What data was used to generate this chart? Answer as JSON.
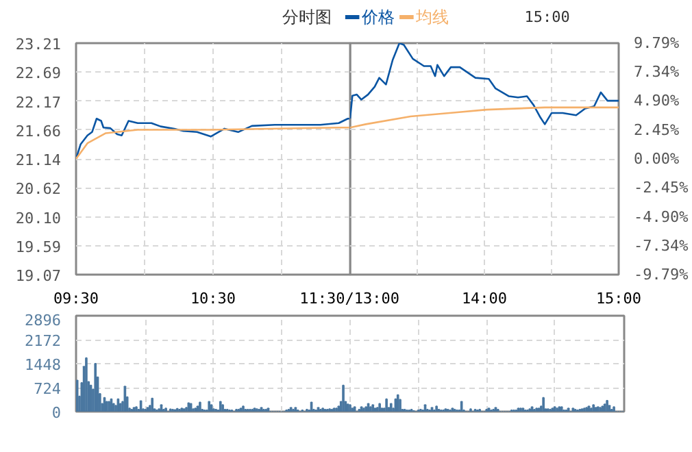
{
  "chart_data": [
    {
      "type": "line",
      "title": "分时图",
      "annotations": [
        "15:00"
      ],
      "legend": "top",
      "grid": true,
      "marker": "none",
      "line_style": "solid",
      "xlim": [
        9.5,
        11.5
      ],
      "xticks": [
        {
          "value": 9.5,
          "label": "09:30"
        },
        {
          "value": 10,
          "label": null
        },
        {
          "value": 10.5,
          "label": "10:30"
        },
        {
          "value": 11,
          "label": null
        },
        {
          "value": 11.5,
          "label": "11:30/13:00"
        }
      ],
      "ylim": [
        19.07,
        23.21
      ],
      "yticks": [
        19.07,
        19.59,
        {
          "value": 20.1,
          "label": "20.10"
        },
        20.62,
        21.14,
        21.66,
        22.17,
        22.69,
        23.21
      ],
      "series": [
        {
          "name": "价格",
          "color": "#0a55a3",
          "x": [
            9.5,
            9.533,
            9.583,
            9.617,
            9.65,
            9.683,
            9.7,
            9.75,
            9.8,
            9.833,
            9.883,
            9.95,
            10.05,
            10.117,
            10.217,
            10.283,
            10.383,
            10.483,
            10.583,
            10.683,
            10.783,
            10.95,
            11.283,
            11.417,
            11.483,
            11.5
          ],
          "values": [
            21.14,
            21.4,
            21.56,
            21.62,
            21.86,
            21.82,
            21.7,
            21.69,
            21.58,
            21.56,
            21.82,
            21.78,
            21.78,
            21.72,
            21.68,
            21.64,
            21.62,
            21.54,
            21.68,
            21.62,
            21.73,
            21.75,
            21.75,
            21.78,
            21.86,
            21.86
          ]
        },
        {
          "name": "均线",
          "color": "#f5b06a",
          "x": [
            9.5,
            9.583,
            9.717,
            9.95,
            10.483,
            11.417,
            11.5
          ],
          "values": [
            21.14,
            21.42,
            21.6,
            21.66,
            21.66,
            21.7,
            21.7
          ]
        }
      ]
    },
    {
      "type": "line",
      "grid": true,
      "marker": "none",
      "line_style": "solid",
      "xlim": [
        13,
        15
      ],
      "xticks": [
        {
          "value": 13.5,
          "label": null
        },
        {
          "value": 14,
          "label": "14:00"
        },
        {
          "value": 14.5,
          "label": null
        },
        {
          "value": 15,
          "label": "15:00"
        }
      ],
      "ylim": [
        19.07,
        23.21
      ],
      "y2lim": [
        -9.79,
        9.79
      ],
      "y2ticks": [
        {
          "value": -9.79,
          "label": "-9.79%"
        },
        {
          "value": -7.34,
          "label": "-7.34%"
        },
        {
          "value": -4.9,
          "label": "-4.90%"
        },
        {
          "value": -2.45,
          "label": "-2.45%"
        },
        {
          "value": 0,
          "label": "0.00%"
        },
        {
          "value": 2.45,
          "label": "2.45%"
        },
        {
          "value": 4.9,
          "label": "4.90%"
        },
        {
          "value": 7.34,
          "label": "7.34%"
        },
        {
          "value": 9.79,
          "label": "9.79%"
        }
      ],
      "series": [
        {
          "color": "#0a55a3",
          "x": [
            13,
            13.017,
            13.05,
            13.083,
            13.133,
            13.183,
            13.217,
            13.267,
            13.317,
            13.367,
            13.4,
            13.467,
            13.55,
            13.6,
            13.633,
            13.65,
            13.7,
            13.75,
            13.817,
            13.933,
            14.033,
            14.083,
            14.183,
            14.25,
            14.317,
            14.367,
            14.417,
            14.45,
            14.5,
            14.583,
            14.683,
            14.75,
            14.817,
            14.867,
            14.917,
            15
          ],
          "values": [
            21.86,
            22.27,
            22.29,
            22.2,
            22.29,
            22.43,
            22.59,
            22.47,
            22.91,
            23.21,
            23.18,
            22.93,
            22.8,
            22.8,
            22.62,
            22.82,
            22.62,
            22.78,
            22.78,
            22.59,
            22.57,
            22.4,
            22.26,
            22.24,
            22.26,
            22.1,
            21.88,
            21.76,
            21.96,
            21.96,
            21.92,
            22.04,
            22.08,
            22.33,
            22.18,
            22.18
          ]
        },
        {
          "color": "#f5b06a",
          "x": [
            13,
            13.117,
            13.45,
            13.783,
            14.017,
            14.45,
            15
          ],
          "values": [
            21.7,
            21.76,
            21.9,
            21.97,
            22.02,
            22.06,
            22.06
          ]
        }
      ]
    },
    {
      "type": "bar",
      "grid": true,
      "tick_labels": "y",
      "ylim": [
        0,
        2896
      ],
      "yticks": [
        0,
        724,
        1448,
        2172,
        2896
      ],
      "categories": [
        null,
        null,
        null,
        null,
        null,
        null,
        null,
        null,
        null,
        null,
        null,
        null,
        null,
        null,
        null,
        null,
        null,
        null,
        null,
        null,
        null,
        null,
        null,
        null,
        null,
        null,
        null,
        null,
        null,
        null,
        null,
        null,
        null,
        null,
        null,
        null,
        null,
        null,
        null,
        null,
        null,
        null,
        null,
        null,
        null,
        null,
        null,
        null,
        null,
        null,
        null,
        null,
        null,
        null,
        null,
        null,
        null,
        null,
        null,
        null,
        null,
        null,
        null,
        null,
        null,
        null,
        null,
        null,
        null,
        null,
        null,
        null,
        null,
        null,
        null,
        null,
        null,
        null,
        null,
        null,
        null,
        null,
        null,
        null,
        null,
        null,
        null,
        null,
        null,
        null,
        null,
        null,
        null,
        null,
        null,
        null,
        null,
        null,
        null,
        null,
        null,
        null,
        null,
        null,
        null,
        null,
        null,
        null,
        null,
        null,
        null,
        null,
        null,
        null,
        null,
        null,
        null,
        null,
        null,
        null,
        null,
        null,
        null,
        null,
        null,
        null,
        null,
        null,
        null,
        null,
        null,
        null,
        null,
        null,
        null,
        null,
        null,
        null,
        null,
        null,
        null,
        null,
        null,
        null,
        null,
        null,
        null,
        null,
        null,
        null,
        null,
        null,
        null,
        null,
        null,
        null,
        null,
        null,
        null,
        null,
        null,
        null,
        null,
        null,
        null,
        null,
        null,
        null,
        null,
        null,
        null,
        null,
        null,
        null,
        null,
        null,
        null,
        null,
        null,
        null,
        null,
        null,
        null,
        null,
        null,
        null,
        null,
        null,
        null,
        null,
        null,
        null,
        null,
        null,
        null,
        null,
        null,
        null,
        null,
        null,
        null,
        null,
        null,
        null,
        null,
        null,
        null,
        null,
        null,
        null,
        null,
        null,
        null,
        null,
        null,
        null,
        null,
        null,
        null,
        null,
        null,
        null,
        null,
        null,
        null,
        null,
        null,
        null,
        null,
        null,
        null,
        null,
        null,
        null,
        null,
        null,
        null,
        null,
        null,
        null,
        null
      ],
      "series": [
        {
          "color": "#4a77a0",
          "values": [
            940,
            460,
            870,
            1360,
            1620,
            900,
            790,
            670,
            1450,
            1040,
            540,
            240,
            420,
            300,
            300,
            380,
            240,
            180,
            380,
            240,
            300,
            760,
            440,
            100,
            60,
            120,
            140,
            60,
            320,
            80,
            60,
            120,
            180,
            400,
            80,
            40,
            80,
            200,
            60,
            100,
            0,
            70,
            60,
            50,
            90,
            60,
            100,
            80,
            120,
            260,
            240,
            80,
            100,
            160,
            280,
            60,
            40,
            40,
            300,
            200,
            80,
            60,
            40,
            300,
            200,
            60,
            60,
            40,
            40,
            0,
            60,
            60,
            100,
            160,
            60,
            60,
            60,
            60,
            100,
            80,
            60,
            120,
            60,
            60,
            100,
            0,
            0,
            0,
            0,
            0,
            0,
            0,
            40,
            60,
            120,
            60,
            120,
            40,
            0,
            40,
            0,
            60,
            40,
            280,
            60,
            40,
            120,
            60,
            100,
            60,
            60,
            80,
            60,
            100,
            100,
            160,
            300,
            790,
            300,
            220,
            200,
            100,
            140,
            0,
            60,
            140,
            100,
            140,
            240,
            140,
            200,
            100,
            120,
            240,
            100,
            100,
            380,
            120,
            240,
            100,
            380,
            500,
            360,
            60,
            60,
            40,
            40,
            60,
            20,
            0,
            40,
            60,
            40,
            200,
            60,
            40,
            120,
            40,
            160,
            60,
            40,
            40,
            80,
            60,
            40,
            100,
            60,
            40,
            40,
            300,
            40,
            0,
            0,
            80,
            0,
            60,
            40,
            60,
            0,
            0,
            60,
            100,
            40,
            60,
            120,
            60,
            0,
            0,
            0,
            0,
            0,
            40,
            40,
            40,
            100,
            100,
            100,
            40,
            40,
            80,
            140,
            60,
            100,
            100,
            160,
            420,
            80,
            80,
            60,
            100,
            140,
            100,
            140,
            140,
            40,
            40,
            100,
            0,
            100,
            60,
            40,
            60,
            80,
            100,
            120,
            160,
            100,
            200,
            120,
            140,
            120,
            160,
            220,
            330,
            180,
            60,
            140,
            0,
            0,
            0,
            0
          ]
        }
      ]
    }
  ]
}
